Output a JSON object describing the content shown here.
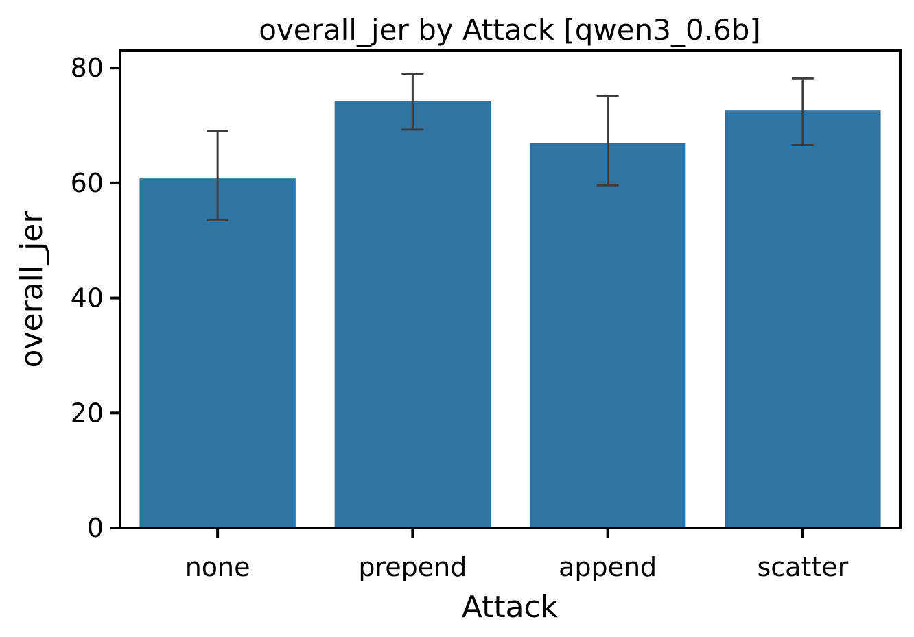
{
  "chart_data": {
    "type": "bar",
    "title": "overall_jer by Attack [qwen3_0.6b]",
    "xlabel": "Attack",
    "ylabel": "overall_jer",
    "categories": [
      "none",
      "prepend",
      "append",
      "scatter"
    ],
    "values": [
      60.8,
      74.2,
      67.0,
      72.6
    ],
    "error_bars": [
      {
        "low": 53.5,
        "high": 69.1
      },
      {
        "low": 69.3,
        "high": 78.9
      },
      {
        "low": 59.6,
        "high": 75.1
      },
      {
        "low": 66.6,
        "high": 78.2
      }
    ],
    "ylim": [
      0,
      83
    ],
    "yticks": [
      "0",
      "20",
      "40",
      "60",
      "80"
    ],
    "ytick_values": [
      0,
      20,
      40,
      60,
      80
    ],
    "grid": false,
    "colors": {
      "bar": "#3274a1",
      "error_bar": "#3d3d3d",
      "axis": "#000000"
    }
  }
}
